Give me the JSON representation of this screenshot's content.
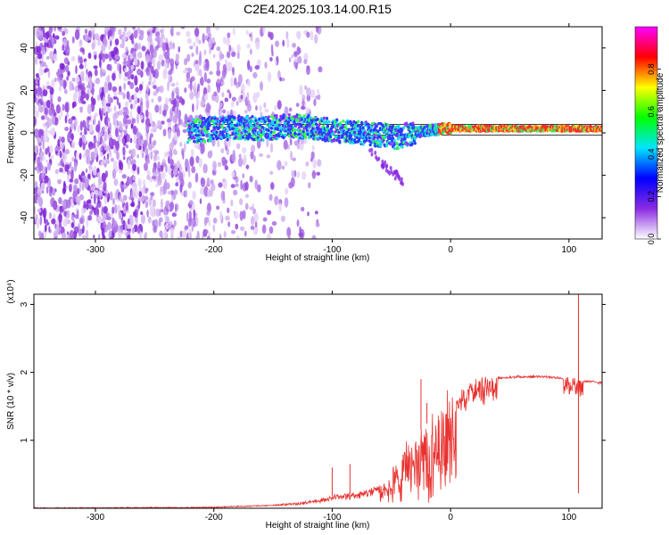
{
  "title": "C2E4.2025.103.14.00.R15",
  "colors": {
    "snr_line": "#e8312e",
    "background": "#ffffff",
    "axis": "#000000"
  },
  "chart_data": [
    {
      "type": "heatmap",
      "title": "C2E4.2025.103.14.00.R15",
      "xlabel": "Height of straight line (km)",
      "ylabel": "Frequency (Hz)",
      "xlim": [
        -352,
        128
      ],
      "ylim": [
        -50,
        50
      ],
      "x_ticks": [
        -300,
        -200,
        -100,
        0,
        100
      ],
      "x_tick_labels": [
        "-300",
        "-200",
        "-100",
        "0",
        "100"
      ],
      "y_ticks": [
        -40,
        -20,
        0,
        20,
        40
      ],
      "y_tick_labels": [
        "-40",
        "-20",
        "0",
        "20",
        "40"
      ],
      "colorbar": {
        "label": "Normalized spectral amplitude",
        "range": [
          0,
          1
        ],
        "ticks": [
          0,
          0.2,
          0.4,
          0.6,
          0.8
        ],
        "tick_labels": [
          "0.0",
          "0.2",
          "0.4",
          "0.6",
          "0.8"
        ],
        "colormap": [
          "#ffffff",
          "#8a2be2",
          "#0000ff",
          "#00e5ff",
          "#00ff00",
          "#ffff00",
          "#ff0000",
          "#ff00ff"
        ]
      },
      "noise_band_x": [
        -352,
        -170
      ],
      "signal_ridge": {
        "x": [
          -222,
          -200,
          -180,
          -160,
          -140,
          -120,
          -100,
          -80,
          -60,
          -45,
          -30,
          -15,
          0,
          20,
          60,
          100,
          128
        ],
        "y": [
          0.5,
          2,
          2.5,
          2,
          3,
          3,
          1,
          0,
          -1,
          -2,
          0,
          1.5,
          2,
          2,
          2,
          2,
          2
        ]
      },
      "reference_lines": [
        -1,
        4
      ]
    },
    {
      "type": "line",
      "xlabel": "Height of straight line (km)",
      "ylabel": "SNR (10 * v/v)",
      "y_multiplier": "(x10⁴)",
      "xlim": [
        -352,
        128
      ],
      "ylim": [
        0,
        3.15
      ],
      "x_ticks": [
        -300,
        -200,
        -100,
        0,
        100
      ],
      "x_tick_labels": [
        "-300",
        "-200",
        "-100",
        "0",
        "100"
      ],
      "y_ticks": [
        1,
        2,
        3
      ],
      "y_tick_labels": [
        "1",
        "2",
        "3"
      ],
      "series_envelope": {
        "x": [
          -352,
          -250,
          -200,
          -150,
          -120,
          -100,
          -80,
          -60,
          -50,
          -40,
          -30,
          -20,
          -10,
          0,
          10,
          20,
          30,
          40,
          60,
          80,
          95,
          100,
          105,
          108,
          110,
          115,
          128
        ],
        "y": [
          0.01,
          0.015,
          0.02,
          0.05,
          0.1,
          0.18,
          0.22,
          0.35,
          0.5,
          0.75,
          1.05,
          1.25,
          1.3,
          1.6,
          1.75,
          1.85,
          1.9,
          1.93,
          1.95,
          1.95,
          1.93,
          1.9,
          1.88,
          1.85,
          1.88,
          1.88,
          1.86
        ]
      },
      "spikes": [
        {
          "x": -100,
          "y": 0.6
        },
        {
          "x": -85,
          "y": 0.65
        },
        {
          "x": -25,
          "y": 1.9
        },
        {
          "x": -20,
          "y": 1.55
        },
        {
          "x": 108,
          "y": 3.15
        },
        {
          "x": 108,
          "y": 0.22
        }
      ]
    }
  ]
}
